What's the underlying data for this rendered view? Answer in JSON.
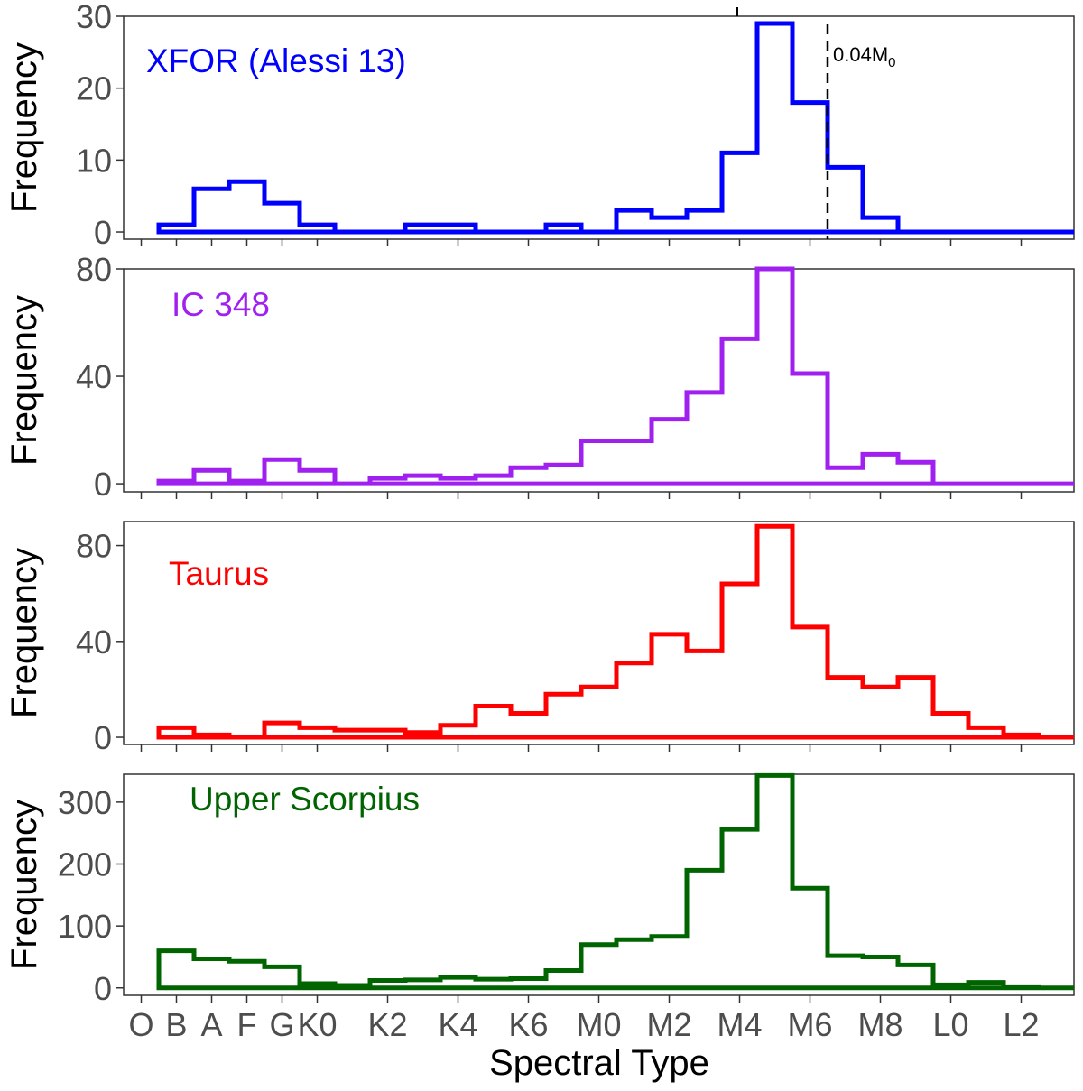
{
  "chart_data": {
    "type": "histogram",
    "xlabel": "Spectral Type",
    "ylabel": "Frequency",
    "x_range": [
      -0.5,
      26.5
    ],
    "x_tick_labels": [
      "O",
      "B",
      "A",
      "F",
      "G",
      "K0",
      "K2",
      "K4",
      "K6",
      "M0",
      "M2",
      "M4",
      "M6",
      "M8",
      "L0",
      "L2"
    ],
    "x_tick_positions": [
      0,
      1,
      2,
      3,
      4,
      5,
      7,
      9,
      11,
      13,
      15,
      17,
      19,
      21,
      23,
      25
    ],
    "bin_edges": [
      0.5,
      1.5,
      2.5,
      3.5,
      4.5,
      5.5,
      6.5,
      7.5,
      8.5,
      9.5,
      10.5,
      11.5,
      12.5,
      13.5,
      14.5,
      15.5,
      16.5,
      17.5,
      18.5,
      19.5,
      20.5,
      21.5,
      22.5,
      23.5,
      24.5,
      25.5,
      26.5
    ],
    "panels": [
      {
        "name": "XFOR (Alessi 13)",
        "color": "#0000ff",
        "ylim": [
          -1,
          30
        ],
        "yticks": [
          0,
          10,
          20,
          30
        ],
        "values": [
          1,
          6,
          7,
          4,
          1,
          0,
          0,
          1,
          1,
          0,
          0,
          1,
          0,
          3,
          2,
          3,
          11,
          29,
          18,
          9,
          2,
          0,
          0,
          0,
          0,
          0
        ],
        "annotation": "0.04M",
        "annotation_subscript": "0",
        "vline_x": 19.5
      },
      {
        "name": "IC 348",
        "color": "#a020f0",
        "ylim": [
          -3,
          80
        ],
        "yticks": [
          0,
          40,
          80
        ],
        "values": [
          1,
          5,
          1,
          9,
          5,
          0,
          2,
          3,
          2,
          3,
          6,
          7,
          16,
          16,
          24,
          34,
          54,
          80,
          41,
          6,
          11,
          8,
          0,
          0,
          0,
          0
        ]
      },
      {
        "name": "Taurus",
        "color": "#ff0000",
        "ylim": [
          -3,
          90
        ],
        "yticks": [
          0,
          40,
          80
        ],
        "values": [
          4,
          1,
          0,
          6,
          4,
          3,
          3,
          2,
          5,
          13,
          10,
          18,
          21,
          31,
          43,
          36,
          64,
          88,
          46,
          25,
          21,
          25,
          10,
          4,
          1,
          0
        ]
      },
      {
        "name": "Upper Scorpius",
        "color": "#006400",
        "ylim": [
          -12,
          345
        ],
        "yticks": [
          0,
          100,
          200,
          300
        ],
        "values": [
          60,
          47,
          43,
          34,
          7,
          4,
          12,
          13,
          17,
          14,
          15,
          28,
          70,
          78,
          83,
          190,
          256,
          343,
          161,
          52,
          50,
          37,
          5,
          9,
          2,
          0
        ]
      }
    ]
  }
}
